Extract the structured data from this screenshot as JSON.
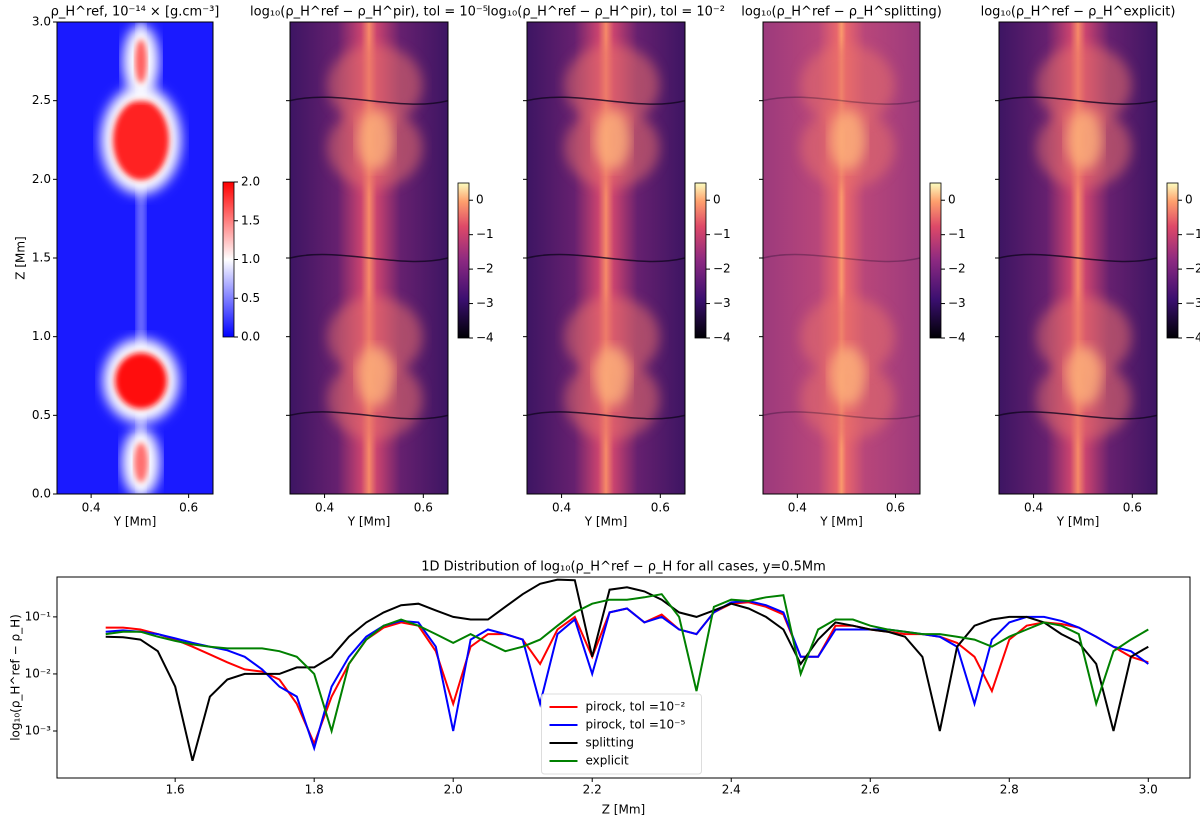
{
  "chart_data": [
    {
      "type": "heatmap",
      "title": "ρ_H^ref, 10⁻¹⁴ × [g.cm⁻³]",
      "colormap": "bwr",
      "xlabel": "Y [Mm]",
      "ylabel": "Z [Mm]",
      "xlim": [
        0.33,
        0.65
      ],
      "xticks": [
        0.4,
        0.6
      ],
      "ylim": [
        0,
        3
      ],
      "yticks": [
        {
          "value": 0,
          "label": "0.0"
        },
        0.5,
        {
          "value": 1,
          "label": "1.0"
        },
        1.5,
        {
          "value": 2,
          "label": "2.0"
        },
        2.5,
        {
          "value": 3,
          "label": "3.0"
        }
      ],
      "clim": [
        0,
        2
      ],
      "cticks": [
        {
          "value": 0,
          "label": "0.0"
        },
        0.5,
        {
          "value": 1,
          "label": "1.0"
        },
        1.5,
        {
          "value": 2,
          "label": "2.0"
        }
      ]
    },
    {
      "type": "heatmap",
      "title": "log₁₀(ρ_H^ref − ρ_H^pir), tol = 10⁻⁵",
      "colormap": "magma",
      "xlabel": "Y [Mm]",
      "xlim": [
        0.33,
        0.65
      ],
      "xticks": [
        0.4,
        0.6
      ],
      "ylim": [
        0,
        3
      ],
      "clim": [
        -4,
        0.5
      ],
      "cticks": [
        {
          "value": -4,
          "label": "−4"
        },
        {
          "value": -3,
          "label": "−3"
        },
        {
          "value": -2,
          "label": "−2"
        },
        {
          "value": -1,
          "label": "−1"
        },
        0
      ]
    },
    {
      "type": "heatmap",
      "title": "log₁₀(ρ_H^ref − ρ_H^pir), tol = 10⁻²",
      "colormap": "magma",
      "xlabel": "Y [Mm]",
      "xlim": [
        0.33,
        0.65
      ],
      "xticks": [
        0.4,
        0.6
      ],
      "ylim": [
        0,
        3
      ],
      "clim": [
        -4,
        0.5
      ],
      "cticks": [
        {
          "value": -4,
          "label": "−4"
        },
        {
          "value": -3,
          "label": "−3"
        },
        {
          "value": -2,
          "label": "−2"
        },
        {
          "value": -1,
          "label": "−1"
        },
        0
      ]
    },
    {
      "type": "heatmap",
      "title": "log₁₀(ρ_H^ref − ρ_H^splitting)",
      "colormap": "magma-light",
      "xlabel": "Y [Mm]",
      "xlim": [
        0.33,
        0.65
      ],
      "xticks": [
        0.4,
        0.6
      ],
      "ylim": [
        0,
        3
      ],
      "clim": [
        -4,
        0.5
      ],
      "cticks": [
        {
          "value": -4,
          "label": "−4"
        },
        {
          "value": -3,
          "label": "−3"
        },
        {
          "value": -2,
          "label": "−2"
        },
        {
          "value": -1,
          "label": "−1"
        },
        0
      ]
    },
    {
      "type": "heatmap",
      "title": "log₁₀(ρ_H^ref − ρ_H^explicit)",
      "colormap": "magma",
      "xlabel": "Y [Mm]",
      "xlim": [
        0.33,
        0.65
      ],
      "xticks": [
        0.4,
        0.6
      ],
      "ylim": [
        0,
        3
      ],
      "clim": [
        -4,
        0.5
      ],
      "cticks": [
        {
          "value": -4,
          "label": "−4"
        },
        {
          "value": -3,
          "label": "−3"
        },
        {
          "value": -2,
          "label": "−2"
        },
        {
          "value": -1,
          "label": "−1"
        },
        0
      ]
    },
    {
      "type": "line",
      "title": "1D Distribution of log₁₀(ρ_H^ref − ρ_H for all cases, y=0.5Mm",
      "xlabel": "Z [Mm]",
      "ylabel": "log₁₀(ρ_H^ref − ρ_H)",
      "log_y": true,
      "legend": "lower center",
      "xlim": [
        1.43,
        3.06
      ],
      "xticks": [
        1.6,
        1.8,
        {
          "value": 2,
          "label": "2.0"
        },
        2.2,
        2.4,
        2.6,
        2.8,
        {
          "value": 3,
          "label": "3.0"
        }
      ],
      "ylim": [
        0.00015,
        0.5
      ],
      "yticks": [
        {
          "value": 0.001,
          "label": "10⁻³"
        },
        {
          "value": 0.01,
          "label": "10⁻²"
        },
        {
          "value": 0.1,
          "label": "10⁻¹"
        }
      ],
      "x": [
        1.5,
        1.525,
        1.55,
        1.575,
        1.6,
        1.625,
        1.65,
        1.675,
        1.7,
        1.725,
        1.75,
        1.775,
        1.8,
        1.825,
        1.85,
        1.875,
        1.9,
        1.925,
        1.95,
        1.975,
        2.0,
        2.025,
        2.05,
        2.075,
        2.1,
        2.125,
        2.15,
        2.175,
        2.2,
        2.225,
        2.25,
        2.275,
        2.3,
        2.325,
        2.35,
        2.375,
        2.4,
        2.425,
        2.45,
        2.475,
        2.5,
        2.525,
        2.55,
        2.575,
        2.6,
        2.625,
        2.65,
        2.675,
        2.7,
        2.725,
        2.75,
        2.775,
        2.8,
        2.825,
        2.85,
        2.875,
        2.9,
        2.925,
        2.95,
        2.975,
        3.0
      ],
      "series": [
        {
          "name": "pirock, tol =10⁻²",
          "color": "#ff0000",
          "values": [
            0.065,
            0.065,
            0.06,
            0.05,
            0.04,
            0.03,
            0.022,
            0.016,
            0.012,
            0.011,
            0.008,
            0.003,
            0.0006,
            0.004,
            0.015,
            0.04,
            0.065,
            0.08,
            0.07,
            0.025,
            0.003,
            0.03,
            0.05,
            0.05,
            0.04,
            0.015,
            0.06,
            0.1,
            0.02,
            0.12,
            0.14,
            0.08,
            0.11,
            0.06,
            0.05,
            0.12,
            0.17,
            0.18,
            0.15,
            0.11,
            0.02,
            0.02,
            0.07,
            0.07,
            0.06,
            0.055,
            0.05,
            0.05,
            0.045,
            0.035,
            0.02,
            0.005,
            0.04,
            0.07,
            0.08,
            0.075,
            0.065,
            0.045,
            0.03,
            0.02,
            0.016
          ]
        },
        {
          "name": "pirock, tol =10⁻⁵",
          "color": "#0000ff",
          "values": [
            0.055,
            0.058,
            0.055,
            0.05,
            0.042,
            0.035,
            0.03,
            0.026,
            0.02,
            0.012,
            0.006,
            0.004,
            0.0005,
            0.006,
            0.02,
            0.045,
            0.07,
            0.085,
            0.08,
            0.03,
            0.001,
            0.04,
            0.06,
            0.05,
            0.04,
            0.003,
            0.05,
            0.09,
            0.01,
            0.12,
            0.14,
            0.08,
            0.1,
            0.06,
            0.05,
            0.12,
            0.18,
            0.19,
            0.16,
            0.12,
            0.02,
            0.02,
            0.06,
            0.06,
            0.06,
            0.06,
            0.055,
            0.05,
            0.045,
            0.03,
            0.003,
            0.04,
            0.08,
            0.1,
            0.1,
            0.085,
            0.065,
            0.045,
            0.03,
            0.025,
            0.015
          ]
        },
        {
          "name": "splitting",
          "color": "#000000",
          "values": [
            0.045,
            0.044,
            0.04,
            0.025,
            0.006,
            0.0003,
            0.004,
            0.008,
            0.01,
            0.01,
            0.01,
            0.013,
            0.013,
            0.02,
            0.045,
            0.08,
            0.12,
            0.16,
            0.17,
            0.13,
            0.1,
            0.09,
            0.09,
            0.15,
            0.25,
            0.38,
            0.45,
            0.44,
            0.02,
            0.3,
            0.33,
            0.28,
            0.2,
            0.12,
            0.1,
            0.13,
            0.17,
            0.14,
            0.1,
            0.06,
            0.015,
            0.04,
            0.08,
            0.07,
            0.06,
            0.055,
            0.045,
            0.02,
            0.001,
            0.03,
            0.07,
            0.09,
            0.1,
            0.1,
            0.08,
            0.05,
            0.035,
            0.015,
            0.001,
            0.02,
            0.03
          ]
        },
        {
          "name": "explicit",
          "color": "#008000",
          "values": [
            0.05,
            0.055,
            0.055,
            0.045,
            0.038,
            0.033,
            0.03,
            0.028,
            0.028,
            0.028,
            0.025,
            0.02,
            0.01,
            0.001,
            0.015,
            0.04,
            0.07,
            0.09,
            0.07,
            0.05,
            0.035,
            0.05,
            0.035,
            0.025,
            0.03,
            0.04,
            0.07,
            0.12,
            0.17,
            0.2,
            0.2,
            0.22,
            0.25,
            0.1,
            0.005,
            0.15,
            0.2,
            0.19,
            0.22,
            0.24,
            0.01,
            0.06,
            0.09,
            0.09,
            0.07,
            0.06,
            0.055,
            0.05,
            0.05,
            0.045,
            0.04,
            0.03,
            0.045,
            0.06,
            0.08,
            0.07,
            0.05,
            0.003,
            0.025,
            0.04,
            0.06
          ]
        }
      ]
    }
  ]
}
